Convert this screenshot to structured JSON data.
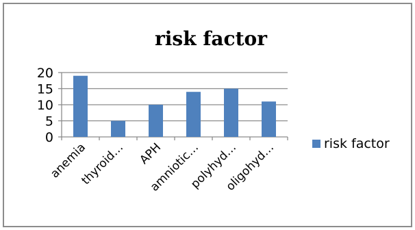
{
  "chart_data": {
    "type": "bar",
    "title": "risk factor",
    "categories": [
      "anemia",
      "thyroid…",
      "APH",
      "amniotic…",
      "polyhyd…",
      "oligohyd…"
    ],
    "series": [
      {
        "name": "risk factor",
        "values": [
          19,
          5,
          10,
          14,
          15,
          11
        ],
        "color": "#4f81bd"
      }
    ],
    "ylim": [
      0,
      20
    ],
    "yticks": [
      0,
      5,
      10,
      15,
      20
    ],
    "grid": true,
    "legend": "right"
  }
}
